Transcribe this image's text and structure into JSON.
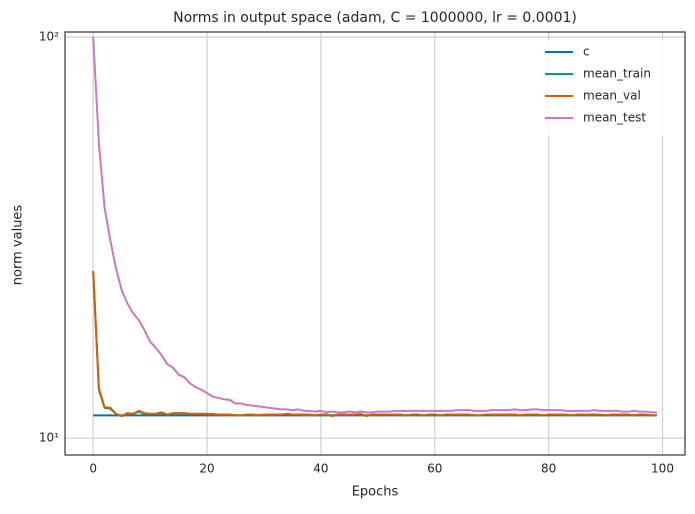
{
  "chart_data": {
    "type": "line",
    "title": "Norms in output space (adam, C = 1000000, lr = 0.0001)",
    "x_label": "Epochs",
    "y_label": "norm values",
    "x": [
      0,
      1,
      2,
      3,
      4,
      5,
      6,
      7,
      8,
      9,
      10,
      11,
      12,
      13,
      14,
      15,
      16,
      17,
      18,
      19,
      20,
      21,
      22,
      23,
      24,
      25,
      26,
      27,
      28,
      29,
      30,
      31,
      32,
      33,
      34,
      35,
      36,
      37,
      38,
      39,
      40,
      41,
      42,
      43,
      44,
      45,
      46,
      47,
      48,
      49,
      50,
      51,
      52,
      53,
      54,
      55,
      56,
      57,
      58,
      59,
      60,
      61,
      62,
      63,
      64,
      65,
      66,
      67,
      68,
      69,
      70,
      71,
      72,
      73,
      74,
      75,
      76,
      77,
      78,
      79,
      80,
      81,
      82,
      83,
      84,
      85,
      86,
      87,
      88,
      89,
      90,
      91,
      92,
      93,
      94,
      95,
      96,
      97,
      98,
      99
    ],
    "series": [
      {
        "name": "c",
        "color": "#0173b2",
        "values": [
          11.4,
          11.4,
          11.4,
          11.4,
          11.4,
          11.4,
          11.4,
          11.4,
          11.4,
          11.4,
          11.4,
          11.4,
          11.4,
          11.4,
          11.4,
          11.4,
          11.4,
          11.4,
          11.4,
          11.4,
          11.4,
          11.4,
          11.4,
          11.4,
          11.4,
          11.4,
          11.4,
          11.4,
          11.4,
          11.4,
          11.4,
          11.4,
          11.4,
          11.4,
          11.4,
          11.4,
          11.4,
          11.4,
          11.4,
          11.4,
          11.4,
          11.4,
          11.4,
          11.4,
          11.4,
          11.4,
          11.4,
          11.4,
          11.4,
          11.4,
          11.4,
          11.4,
          11.4,
          11.4,
          11.4,
          11.4,
          11.4,
          11.4,
          11.4,
          11.4,
          11.4,
          11.4,
          11.4,
          11.4,
          11.4,
          11.4,
          11.4,
          11.4,
          11.4,
          11.4,
          11.4,
          11.4,
          11.4,
          11.4,
          11.4,
          11.4,
          11.4,
          11.4,
          11.4,
          11.4,
          11.4,
          11.4,
          11.4,
          11.4,
          11.4,
          11.4,
          11.4,
          11.4,
          11.4,
          11.4,
          11.4,
          11.4,
          11.4,
          11.4,
          11.4,
          11.4,
          11.4,
          11.4,
          11.4,
          11.4
        ]
      },
      {
        "name": "mean_train",
        "color": "#029e73",
        "values": [
          26.0,
          13.2,
          11.9,
          11.85,
          11.5,
          11.35,
          11.5,
          11.5,
          11.65,
          11.5,
          11.5,
          11.5,
          11.55,
          11.45,
          11.5,
          11.55,
          11.5,
          11.5,
          11.5,
          11.5,
          11.5,
          11.45,
          11.45,
          11.45,
          11.45,
          11.4,
          11.4,
          11.45,
          11.45,
          11.4,
          11.45,
          11.45,
          11.45,
          11.45,
          11.5,
          11.45,
          11.45,
          11.45,
          11.45,
          11.4,
          11.45,
          11.45,
          11.4,
          11.45,
          11.45,
          11.45,
          11.45,
          11.45,
          11.4,
          11.45,
          11.45,
          11.45,
          11.45,
          11.45,
          11.45,
          11.4,
          11.45,
          11.45,
          11.4,
          11.45,
          11.45,
          11.4,
          11.45,
          11.45,
          11.45,
          11.45,
          11.45,
          11.4,
          11.4,
          11.45,
          11.45,
          11.45,
          11.45,
          11.45,
          11.45,
          11.4,
          11.45,
          11.45,
          11.45,
          11.4,
          11.45,
          11.45,
          11.45,
          11.45,
          11.4,
          11.45,
          11.45,
          11.45,
          11.45,
          11.45,
          11.4,
          11.45,
          11.45,
          11.45,
          11.45,
          11.4,
          11.45,
          11.45,
          11.4,
          11.4
        ]
      },
      {
        "name": "mean_val",
        "color": "#d55e00",
        "values": [
          26.1,
          13.3,
          11.95,
          11.9,
          11.5,
          11.35,
          11.55,
          11.5,
          11.7,
          11.55,
          11.5,
          11.5,
          11.6,
          11.45,
          11.55,
          11.55,
          11.55,
          11.5,
          11.5,
          11.5,
          11.5,
          11.5,
          11.45,
          11.45,
          11.45,
          11.4,
          11.4,
          11.45,
          11.45,
          11.4,
          11.45,
          11.45,
          11.45,
          11.45,
          11.5,
          11.45,
          11.45,
          11.45,
          11.45,
          11.4,
          11.45,
          11.45,
          11.35,
          11.45,
          11.45,
          11.45,
          11.45,
          11.5,
          11.35,
          11.45,
          11.45,
          11.45,
          11.45,
          11.45,
          11.45,
          11.4,
          11.45,
          11.45,
          11.4,
          11.45,
          11.45,
          11.4,
          11.45,
          11.45,
          11.45,
          11.45,
          11.45,
          11.4,
          11.4,
          11.45,
          11.45,
          11.45,
          11.45,
          11.45,
          11.45,
          11.4,
          11.45,
          11.45,
          11.45,
          11.4,
          11.45,
          11.45,
          11.45,
          11.45,
          11.4,
          11.45,
          11.45,
          11.45,
          11.45,
          11.45,
          11.4,
          11.45,
          11.45,
          11.45,
          11.45,
          11.4,
          11.45,
          11.45,
          11.4,
          11.4
        ]
      },
      {
        "name": "mean_test",
        "color": "#cc78bc",
        "values": [
          100,
          54.4,
          37.5,
          31.2,
          26.5,
          23.4,
          21.7,
          20.5,
          19.7,
          18.6,
          17.4,
          16.8,
          16.1,
          15.3,
          15.0,
          14.4,
          14.2,
          13.7,
          13.4,
          13.2,
          12.95,
          12.7,
          12.6,
          12.5,
          12.45,
          12.2,
          12.2,
          12.1,
          12.05,
          12.0,
          11.95,
          11.9,
          11.85,
          11.8,
          11.8,
          11.75,
          11.8,
          11.7,
          11.7,
          11.65,
          11.7,
          11.6,
          11.65,
          11.6,
          11.6,
          11.65,
          11.6,
          11.65,
          11.6,
          11.6,
          11.65,
          11.65,
          11.65,
          11.7,
          11.7,
          11.7,
          11.7,
          11.7,
          11.7,
          11.7,
          11.7,
          11.7,
          11.7,
          11.7,
          11.75,
          11.75,
          11.75,
          11.7,
          11.7,
          11.7,
          11.75,
          11.75,
          11.75,
          11.75,
          11.8,
          11.75,
          11.75,
          11.8,
          11.8,
          11.75,
          11.75,
          11.75,
          11.75,
          11.7,
          11.7,
          11.7,
          11.7,
          11.7,
          11.75,
          11.7,
          11.7,
          11.7,
          11.7,
          11.65,
          11.65,
          11.7,
          11.65,
          11.65,
          11.6,
          11.6
        ]
      }
    ],
    "xlim": [
      -4.95,
      103.95
    ],
    "xticks": [
      0,
      20,
      40,
      60,
      80,
      100
    ],
    "ylim": [
      9.08,
      102.9
    ],
    "yticks": [
      {
        "value": 10,
        "label": "10¹"
      },
      {
        "value": 100,
        "label": "10²"
      }
    ],
    "log_y": true,
    "grid": true,
    "legend": "upper right"
  }
}
